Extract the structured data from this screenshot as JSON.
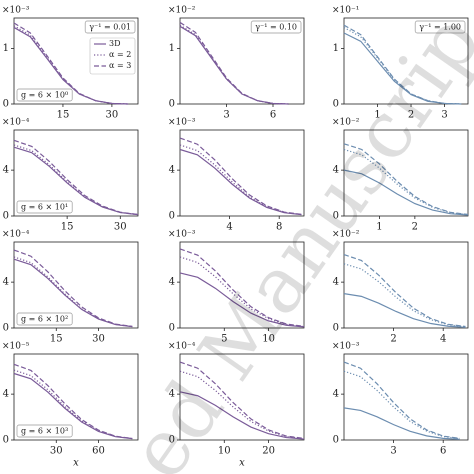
{
  "chart_data": [
    {
      "type": "line",
      "offset_label": "×10⁻³",
      "x": [
        0,
        5,
        10,
        15,
        20,
        25,
        30,
        35
      ],
      "xlim": [
        0,
        38
      ],
      "xticks": [
        15,
        30
      ],
      "ylim": [
        0,
        1.55
      ],
      "yticks": [
        0,
        1
      ],
      "series": [
        {
          "name": "3D",
          "style": "solid",
          "color": "#7a5b99",
          "values": [
            1.38,
            1.21,
            0.83,
            0.44,
            0.18,
            0.06,
            0.01,
            0
          ]
        },
        {
          "name": "α = 2",
          "style": "dotted",
          "color": "#7a5b99",
          "values": [
            1.41,
            1.24,
            0.85,
            0.45,
            0.18,
            0.06,
            0.01,
            0
          ]
        },
        {
          "name": "α = 3",
          "style": "dashed",
          "color": "#7a5b99",
          "values": [
            1.46,
            1.28,
            0.88,
            0.47,
            0.19,
            0.06,
            0.01,
            0
          ]
        }
      ],
      "legend": "center right",
      "annotations": [
        {
          "text": "γ⁻¹ = 0.01",
          "loc": "upper right"
        },
        {
          "text": "g = 6 × 10⁰",
          "loc": "lower left"
        }
      ]
    },
    {
      "type": "line",
      "offset_label": "×10⁻²",
      "x": [
        0,
        1,
        2,
        3,
        4,
        5,
        6,
        7
      ],
      "xlim": [
        0,
        8
      ],
      "xticks": [
        3,
        6
      ],
      "ylim": [
        0,
        1.55
      ],
      "yticks": [
        0,
        1
      ],
      "series": [
        {
          "style": "solid",
          "color": "#7a5b99",
          "values": [
            1.4,
            1.23,
            0.84,
            0.45,
            0.18,
            0.06,
            0.01,
            0
          ]
        },
        {
          "style": "dotted",
          "color": "#7a5b99",
          "values": [
            1.42,
            1.25,
            0.85,
            0.45,
            0.18,
            0.06,
            0.01,
            0
          ]
        },
        {
          "style": "dashed",
          "color": "#7a5b99",
          "values": [
            1.47,
            1.29,
            0.88,
            0.47,
            0.19,
            0.06,
            0.01,
            0
          ]
        }
      ],
      "annotations": [
        {
          "text": "γ⁻¹ = 0.10",
          "loc": "upper right"
        }
      ]
    },
    {
      "type": "line",
      "offset_label": "×10⁻¹",
      "x": [
        0,
        0.5,
        1,
        1.5,
        2,
        2.5,
        3,
        3.5
      ],
      "xlim": [
        0,
        3.7
      ],
      "xticks": [
        1,
        2,
        3
      ],
      "ylim": [
        0,
        1.55
      ],
      "yticks": [
        0,
        1
      ],
      "series": [
        {
          "style": "solid",
          "color": "#6c8db0",
          "values": [
            1.28,
            1.13,
            0.77,
            0.41,
            0.17,
            0.05,
            0.01,
            0
          ]
        },
        {
          "style": "dotted",
          "color": "#6c8db0",
          "values": [
            1.38,
            1.21,
            0.83,
            0.44,
            0.18,
            0.06,
            0.01,
            0
          ]
        },
        {
          "style": "dashed",
          "color": "#6c8db0",
          "values": [
            1.42,
            1.25,
            0.85,
            0.45,
            0.18,
            0.06,
            0.01,
            0
          ]
        }
      ],
      "annotations": [
        {
          "text": "γ⁻¹ = 1.00",
          "loc": "upper right"
        }
      ]
    },
    {
      "type": "line",
      "offset_label": "×10⁻⁴",
      "x": [
        0,
        5,
        10,
        15,
        20,
        25,
        30,
        35
      ],
      "xlim": [
        0,
        35
      ],
      "xticks": [
        15,
        30
      ],
      "ylim": [
        0,
        7.5
      ],
      "yticks": [
        0,
        4
      ],
      "series": [
        {
          "style": "solid",
          "color": "#7a5b99",
          "values": [
            6.0,
            5.52,
            4.32,
            2.88,
            1.62,
            0.78,
            0.3,
            0.12
          ]
        },
        {
          "style": "dotted",
          "color": "#7a5b99",
          "values": [
            6.2,
            5.7,
            4.46,
            2.98,
            1.67,
            0.81,
            0.31,
            0.12
          ]
        },
        {
          "style": "dashed",
          "color": "#7a5b99",
          "values": [
            6.6,
            6.07,
            4.75,
            3.17,
            1.78,
            0.86,
            0.33,
            0.13
          ]
        }
      ],
      "annotations": [
        {
          "text": "g = 6 × 10¹",
          "loc": "lower left"
        }
      ]
    },
    {
      "type": "line",
      "offset_label": "×10⁻³",
      "x": [
        0,
        1.4,
        2.8,
        4.2,
        5.6,
        7,
        8.4,
        9.8
      ],
      "xlim": [
        0,
        10
      ],
      "xticks": [
        4,
        8
      ],
      "ylim": [
        0,
        7.5
      ],
      "yticks": [
        0,
        4
      ],
      "series": [
        {
          "style": "solid",
          "color": "#7a5b99",
          "values": [
            5.8,
            5.34,
            4.18,
            2.78,
            1.57,
            0.75,
            0.29,
            0.12
          ]
        },
        {
          "style": "dotted",
          "color": "#7a5b99",
          "values": [
            6.2,
            5.7,
            4.46,
            2.98,
            1.67,
            0.81,
            0.31,
            0.12
          ]
        },
        {
          "style": "dashed",
          "color": "#7a5b99",
          "values": [
            6.8,
            6.26,
            4.9,
            3.26,
            1.84,
            0.88,
            0.34,
            0.14
          ]
        }
      ]
    },
    {
      "type": "line",
      "offset_label": "×10⁻²",
      "x": [
        0,
        0.5,
        1,
        1.5,
        2,
        2.5,
        3,
        3.5
      ],
      "xlim": [
        0,
        3.5
      ],
      "xticks": [
        1,
        2
      ],
      "ylim": [
        0,
        7.5
      ],
      "yticks": [
        0,
        4
      ],
      "series": [
        {
          "style": "solid",
          "color": "#6c8db0",
          "values": [
            4.0,
            3.68,
            2.88,
            1.92,
            1.08,
            0.52,
            0.2,
            0.08
          ]
        },
        {
          "style": "dotted",
          "color": "#6c8db0",
          "values": [
            5.8,
            5.34,
            4.18,
            2.78,
            1.57,
            0.75,
            0.29,
            0.12
          ]
        },
        {
          "style": "dashed",
          "color": "#6c8db0",
          "values": [
            6.3,
            5.8,
            4.54,
            3.02,
            1.7,
            0.82,
            0.32,
            0.13
          ]
        }
      ]
    },
    {
      "type": "line",
      "offset_label": "×10⁻⁴",
      "x": [
        0,
        6,
        12,
        18,
        24,
        30,
        36,
        42
      ],
      "xlim": [
        0,
        44
      ],
      "xticks": [
        15,
        30
      ],
      "ylim": [
        0,
        7.5
      ],
      "yticks": [
        0,
        4
      ],
      "series": [
        {
          "style": "solid",
          "color": "#7a5b99",
          "values": [
            6.0,
            5.52,
            4.32,
            2.88,
            1.62,
            0.78,
            0.3,
            0.12
          ]
        },
        {
          "style": "dotted",
          "color": "#7a5b99",
          "values": [
            6.2,
            5.7,
            4.46,
            2.98,
            1.67,
            0.81,
            0.31,
            0.12
          ]
        },
        {
          "style": "dashed",
          "color": "#7a5b99",
          "values": [
            6.8,
            6.26,
            4.9,
            3.26,
            1.84,
            0.88,
            0.34,
            0.14
          ]
        }
      ],
      "annotations": [
        {
          "text": "g = 6 × 10²",
          "loc": "lower left"
        }
      ]
    },
    {
      "type": "line",
      "offset_label": "×10⁻³",
      "x": [
        0,
        2,
        4,
        6,
        8,
        10,
        12,
        14
      ],
      "xlim": [
        0,
        14
      ],
      "xticks": [
        5,
        10
      ],
      "ylim": [
        0,
        7.5
      ],
      "yticks": [
        0,
        4
      ],
      "series": [
        {
          "style": "solid",
          "color": "#7a5b99",
          "values": [
            4.8,
            4.42,
            3.46,
            2.3,
            1.3,
            0.62,
            0.24,
            0.1
          ]
        },
        {
          "style": "dotted",
          "color": "#7a5b99",
          "values": [
            6.2,
            5.7,
            4.46,
            2.98,
            1.67,
            0.81,
            0.31,
            0.12
          ]
        },
        {
          "style": "dashed",
          "color": "#7a5b99",
          "values": [
            6.9,
            6.35,
            4.97,
            3.31,
            1.86,
            0.9,
            0.35,
            0.14
          ]
        }
      ]
    },
    {
      "type": "line",
      "offset_label": "×10⁻²",
      "x": [
        0,
        0.7,
        1.4,
        2.1,
        2.8,
        3.5,
        4.2,
        4.9
      ],
      "xlim": [
        0,
        5
      ],
      "xticks": [
        2,
        4
      ],
      "ylim": [
        0,
        7.5
      ],
      "yticks": [
        0,
        4
      ],
      "series": [
        {
          "style": "solid",
          "color": "#6c8db0",
          "values": [
            3.0,
            2.76,
            2.16,
            1.44,
            0.81,
            0.39,
            0.15,
            0.06
          ]
        },
        {
          "style": "dotted",
          "color": "#6c8db0",
          "values": [
            5.6,
            5.15,
            4.03,
            2.69,
            1.51,
            0.73,
            0.28,
            0.11
          ]
        },
        {
          "style": "dashed",
          "color": "#6c8db0",
          "values": [
            6.4,
            5.89,
            4.61,
            3.07,
            1.73,
            0.83,
            0.32,
            0.13
          ]
        }
      ]
    },
    {
      "type": "line",
      "offset_label": "×10⁻⁵",
      "x": [
        0,
        12,
        24,
        36,
        48,
        60,
        72,
        84
      ],
      "xlim": [
        0,
        88
      ],
      "xticks": [
        30,
        60
      ],
      "ylim": [
        0,
        7.5
      ],
      "yticks": [
        0,
        4
      ],
      "xlabel": "x",
      "series": [
        {
          "style": "solid",
          "color": "#7a5b99",
          "values": [
            5.8,
            5.34,
            4.18,
            2.78,
            1.57,
            0.75,
            0.29,
            0.12
          ]
        },
        {
          "style": "dotted",
          "color": "#7a5b99",
          "values": [
            6.1,
            5.61,
            4.39,
            2.93,
            1.65,
            0.79,
            0.31,
            0.12
          ]
        },
        {
          "style": "dashed",
          "color": "#7a5b99",
          "values": [
            6.6,
            6.07,
            4.75,
            3.17,
            1.78,
            0.86,
            0.33,
            0.13
          ]
        }
      ],
      "annotations": [
        {
          "text": "g = 6 × 10³",
          "loc": "lower left"
        }
      ]
    },
    {
      "type": "line",
      "offset_label": "×10⁻⁴",
      "x": [
        0,
        4,
        8,
        12,
        16,
        20,
        24,
        28
      ],
      "xlim": [
        0,
        28
      ],
      "xticks": [
        10,
        20
      ],
      "ylim": [
        0,
        7.5
      ],
      "yticks": [
        0,
        4
      ],
      "xlabel": "x",
      "series": [
        {
          "style": "solid",
          "color": "#7a5b99",
          "values": [
            4.2,
            3.86,
            3.02,
            2.02,
            1.13,
            0.55,
            0.21,
            0.08
          ]
        },
        {
          "style": "dotted",
          "color": "#7a5b99",
          "values": [
            6.0,
            5.52,
            4.32,
            2.88,
            1.62,
            0.78,
            0.3,
            0.12
          ]
        },
        {
          "style": "dashed",
          "color": "#7a5b99",
          "values": [
            6.8,
            6.26,
            4.9,
            3.26,
            1.84,
            0.88,
            0.34,
            0.14
          ]
        }
      ]
    },
    {
      "type": "line",
      "offset_label": "×10⁻³",
      "x": [
        0,
        1,
        2,
        3,
        4,
        5,
        6,
        7
      ],
      "xlim": [
        0,
        7.5
      ],
      "xticks": [
        3,
        6
      ],
      "ylim": [
        0,
        7.5
      ],
      "yticks": [
        0,
        4
      ],
      "series": [
        {
          "style": "solid",
          "color": "#6c8db0",
          "values": [
            2.8,
            2.58,
            2.02,
            1.34,
            0.76,
            0.36,
            0.14,
            0.06
          ]
        },
        {
          "style": "dotted",
          "color": "#6c8db0",
          "values": [
            6.0,
            5.52,
            4.32,
            2.88,
            1.62,
            0.78,
            0.3,
            0.12
          ]
        },
        {
          "style": "dashed",
          "color": "#6c8db0",
          "values": [
            6.8,
            6.26,
            4.9,
            3.26,
            1.84,
            0.88,
            0.34,
            0.14
          ]
        }
      ]
    }
  ],
  "watermark": "ed Manuscrip"
}
